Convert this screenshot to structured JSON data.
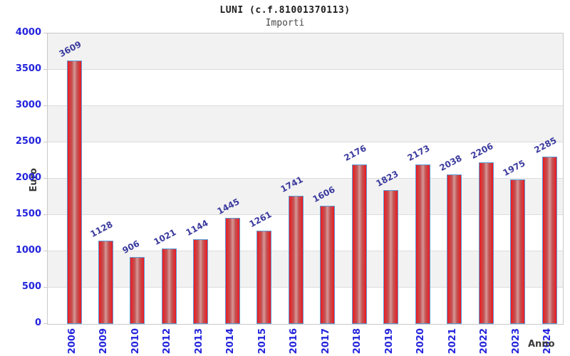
{
  "chart_data": {
    "type": "bar",
    "title": "LUNI (c.f.81001370113)",
    "subtitle": "Importi",
    "xlabel": "Anno",
    "ylabel": "Euro",
    "categories": [
      "2006",
      "2009",
      "2010",
      "2012",
      "2013",
      "2014",
      "2015",
      "2016",
      "2017",
      "2018",
      "2019",
      "2020",
      "2021",
      "2022",
      "2023",
      "2024"
    ],
    "values": [
      3609,
      1128,
      906,
      1021,
      1144,
      1445,
      1261,
      1741,
      1606,
      2176,
      1823,
      2173,
      2038,
      2206,
      1975,
      2285
    ],
    "ylim": [
      0,
      4000
    ],
    "ytick_step": 500,
    "yticks": [
      0,
      500,
      1000,
      1500,
      2000,
      2500,
      3000,
      3500,
      4000
    ],
    "grid": "horizontal-alternating-bands",
    "legend": "none",
    "colors": {
      "bar_red_edge": "#f2161e",
      "bar_red_mid": "#c25454",
      "bar_highlight": "#d89898",
      "bar_border_blue": "#5b9bd5",
      "tick_label_blue": "#2424dd",
      "value_label_navy": "#3b3b9e",
      "axis_title_gray": "#3a3a3a",
      "band_gray": "#f2f2f2",
      "band_white": "#ffffff",
      "plot_border_gray": "#c9c9c9",
      "gridline_gray": "#dcdcdc"
    }
  }
}
